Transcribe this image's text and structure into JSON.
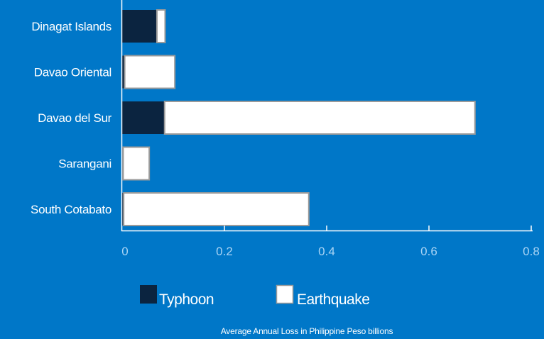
{
  "chart_data": {
    "type": "bar",
    "orientation": "horizontal",
    "stacked": true,
    "categories": [
      "Dinagat Islands",
      "Davao Oriental",
      "Davao del Sur",
      "Sarangani",
      "South Cotabato"
    ],
    "series": [
      {
        "name": "Typhoon",
        "values": [
          0.068,
          0.005,
          0.083,
          0.002,
          0.003
        ],
        "color": "#0b2440"
      },
      {
        "name": "Earthquake",
        "values": [
          0.016,
          0.098,
          0.607,
          0.051,
          0.362
        ],
        "color": "#ffffff"
      }
    ],
    "xlabel": "Average Annual Loss in Philippine Peso billions",
    "xlim": [
      0,
      0.8
    ],
    "xticks": [
      "0",
      "0.2",
      "0.4",
      "0.6",
      "0.8"
    ],
    "xtick_values": [
      0,
      0.2,
      0.4,
      0.6,
      0.8
    ],
    "grid": false,
    "legend": "bottom"
  },
  "colors": {
    "background": "#0077c8",
    "axis": "#ffffff",
    "tick_text": "#a9d4f5",
    "bar_outline": "#9a9a9a"
  }
}
